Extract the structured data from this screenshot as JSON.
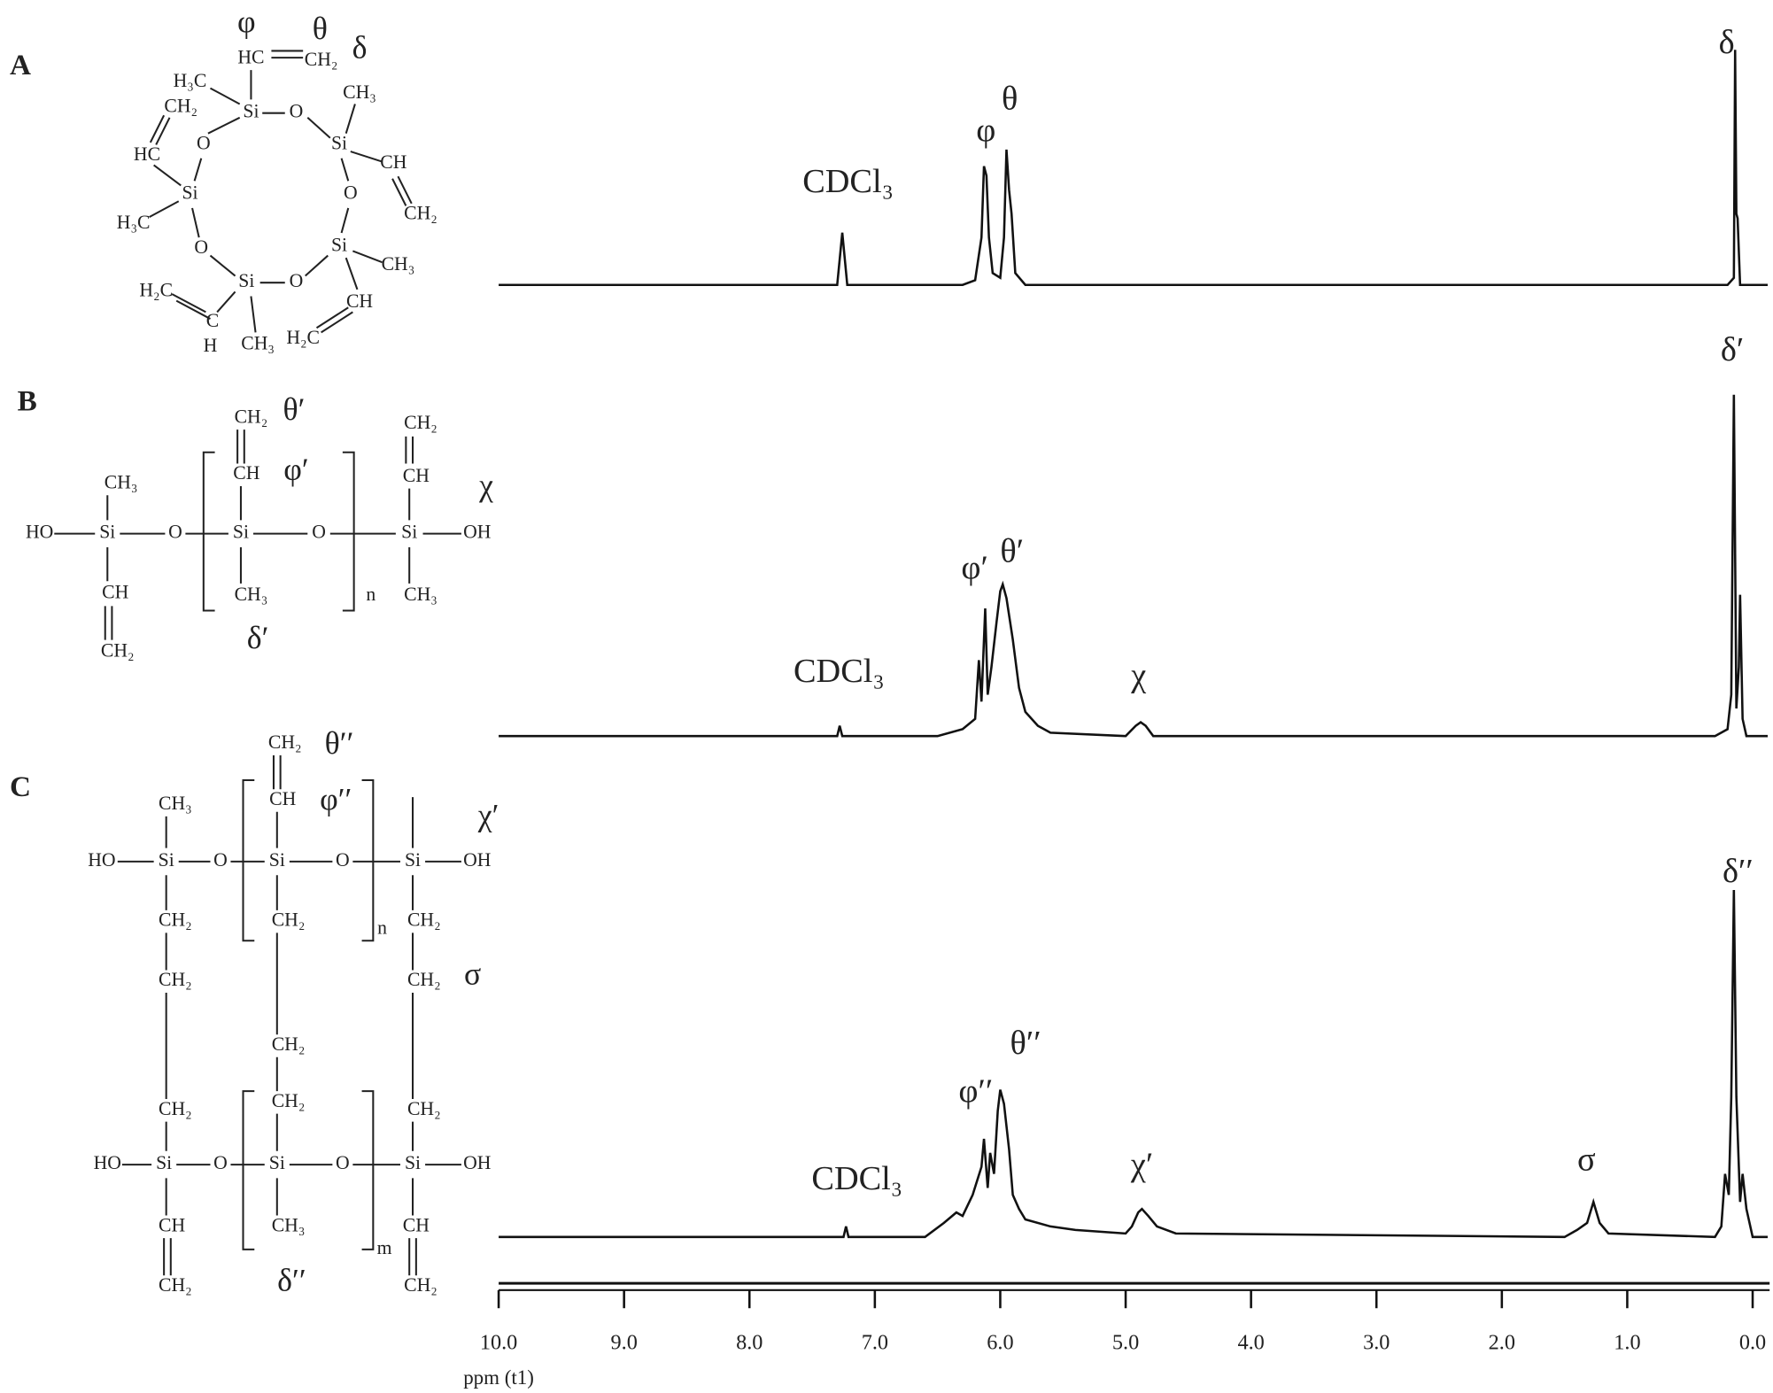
{
  "chart_data": [
    {
      "type": "line",
      "xlim": [
        10,
        -0.12
      ],
      "ylim": [
        0,
        100
      ],
      "color": "#111111",
      "x": [
        10,
        7.3,
        7.26,
        7.22,
        6.3,
        6.2,
        6.15,
        6.13,
        6.11,
        6.09,
        6.06,
        6.0,
        5.97,
        5.95,
        5.93,
        5.91,
        5.88,
        5.8,
        0.2,
        0.15,
        0.14,
        0.13,
        0.12,
        0.1,
        -0.12
      ],
      "values": [
        0,
        0,
        22,
        0,
        0,
        2,
        20,
        50,
        46,
        20,
        5,
        3,
        20,
        57,
        40,
        30,
        5,
        0,
        0,
        3,
        99,
        30,
        28,
        0,
        0
      ],
      "annotations": [
        "CDCl₃",
        "φ",
        "θ",
        "δ"
      ]
    },
    {
      "type": "line",
      "xlim": [
        10,
        -0.12
      ],
      "ylim": [
        0,
        100
      ],
      "color": "#111111",
      "x": [
        10,
        7.3,
        7.28,
        7.26,
        6.5,
        6.3,
        6.2,
        6.17,
        6.15,
        6.12,
        6.1,
        6.07,
        6.03,
        6.0,
        5.98,
        5.95,
        5.9,
        5.85,
        5.8,
        5.7,
        5.6,
        5.0,
        4.92,
        4.88,
        4.84,
        4.78,
        0.3,
        0.2,
        0.17,
        0.15,
        0.13,
        0.11,
        0.1,
        0.08,
        0.05,
        -0.12
      ],
      "values": [
        0,
        0,
        3,
        0,
        0,
        2,
        5,
        22,
        10,
        37,
        12,
        20,
        33,
        42,
        44,
        40,
        28,
        14,
        7,
        3,
        1,
        0,
        3,
        4,
        3,
        0,
        0,
        2,
        12,
        99,
        8,
        20,
        41,
        5,
        0,
        0
      ],
      "annotations": [
        "CDCl₃",
        "φ′",
        "θ′",
        "χ",
        "δ′"
      ]
    },
    {
      "type": "line",
      "xlim": [
        10,
        -0.12
      ],
      "ylim": [
        0,
        100
      ],
      "color": "#111111",
      "x": [
        10,
        7.25,
        7.23,
        7.21,
        6.6,
        6.45,
        6.35,
        6.3,
        6.22,
        6.15,
        6.13,
        6.1,
        6.08,
        6.05,
        6.02,
        6.0,
        5.97,
        5.93,
        5.9,
        5.85,
        5.8,
        5.6,
        5.4,
        5.0,
        4.95,
        4.9,
        4.87,
        4.82,
        4.75,
        4.6,
        1.5,
        1.4,
        1.32,
        1.27,
        1.22,
        1.15,
        0.3,
        0.25,
        0.22,
        0.19,
        0.17,
        0.15,
        0.13,
        0.1,
        0.08,
        0.05,
        0.0,
        -0.12
      ],
      "values": [
        0,
        0,
        3,
        0,
        0,
        4,
        7,
        6,
        12,
        20,
        28,
        14,
        24,
        18,
        36,
        42,
        38,
        25,
        12,
        8,
        5,
        3,
        2,
        1,
        3,
        7,
        8,
        6,
        3,
        1,
        0,
        2,
        4,
        10,
        4,
        1,
        0,
        3,
        18,
        12,
        40,
        99,
        40,
        10,
        18,
        8,
        0,
        0
      ],
      "annotations": [
        "CDCl₃",
        "φ′′",
        "θ′′",
        "χ′",
        "σ",
        "δ′′"
      ],
      "xlabel": "ppm (t1)",
      "xticks": [
        {
          "value": 10,
          "label": "10.0"
        },
        {
          "value": 9,
          "label": "9.0"
        },
        {
          "value": 8,
          "label": "8.0"
        },
        {
          "value": 7,
          "label": "7.0"
        },
        {
          "value": 6,
          "label": "6.0"
        },
        {
          "value": 5,
          "label": "5.0"
        },
        {
          "value": 4,
          "label": "4.0"
        },
        {
          "value": 3,
          "label": "3.0"
        },
        {
          "value": 2,
          "label": "2.0"
        },
        {
          "value": 1,
          "label": "1.0"
        },
        {
          "value": 0,
          "label": "0.0"
        }
      ]
    }
  ],
  "structures": [
    {
      "label": "A",
      "atoms": [
        "φ",
        "θ",
        "δ",
        "HC",
        "CH₂",
        "Si",
        "O",
        "Si",
        "O",
        "Si",
        "O",
        "Si",
        "O",
        "Si",
        "O",
        "H₃C",
        "CH₃",
        "CH",
        "CH₂",
        "CH₃",
        "CH",
        "H₂C",
        "CH₃",
        "C",
        "H",
        "H₂C",
        "H₃C",
        "HC",
        "CH₂"
      ]
    },
    {
      "label": "B",
      "atoms": [
        "HO",
        "Si",
        "O",
        "Si",
        "O",
        "Si",
        "OH",
        "CH₃",
        "CH",
        "CH₂",
        "CH₂",
        "θ′",
        "CH",
        "φ′",
        "CH₃",
        "δ′",
        "n",
        "CH₂",
        "CH",
        "χ",
        "CH₃"
      ]
    },
    {
      "label": "C",
      "atoms": [
        "HO",
        "Si",
        "O",
        "Si",
        "O",
        "Si",
        "OH",
        "CH₃",
        "CH₂",
        "θ′′",
        "CH",
        "φ′′",
        "χ′",
        "n",
        "CH₂",
        "CH₂",
        "CH₂",
        "CH₂",
        "CH₂",
        "CH₂",
        "CH₂",
        "CH₂",
        "CH₂",
        "σ",
        "HO",
        "Si",
        "O",
        "Si",
        "O",
        "Si",
        "OH",
        "m",
        "CH",
        "CH₂",
        "CH₃",
        "δ′′",
        "CH",
        "CH₂"
      ]
    }
  ]
}
